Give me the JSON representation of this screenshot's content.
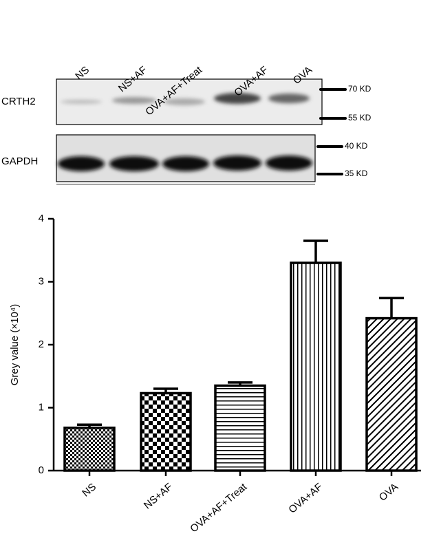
{
  "blot": {
    "lanes": [
      "NS",
      "NS+AF",
      "OVA+AF+Treat",
      "OVA+AF",
      "OVA"
    ],
    "rows": [
      {
        "label": "CRTH2",
        "markers": [
          "70 KD",
          "55 KD"
        ]
      },
      {
        "label": "GAPDH",
        "markers": [
          "40 KD",
          "35 KD"
        ]
      }
    ]
  },
  "chart_data": {
    "type": "bar",
    "y_label": "Grey value (×10⁴)",
    "categories": [
      "NS",
      "NS+AF",
      "OVA+AF+Treat",
      "OVA+AF",
      "OVA"
    ],
    "values": [
      0.68,
      1.23,
      1.35,
      3.3,
      2.42
    ],
    "errors": [
      0.05,
      0.07,
      0.05,
      0.35,
      0.32
    ],
    "color": "#000000",
    "ylim": [
      0,
      4
    ],
    "yticks": [
      0,
      1,
      2,
      3,
      4
    ]
  }
}
